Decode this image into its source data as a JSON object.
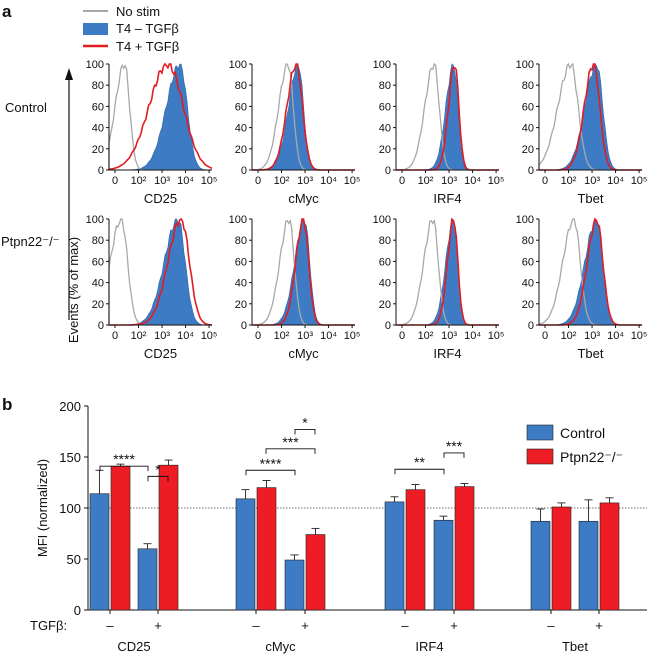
{
  "panel_a": {
    "letter": "a",
    "legend": [
      {
        "label": "No stim",
        "color": "#a8a8a8",
        "style": "line"
      },
      {
        "label": "T4 – TGFβ",
        "color": "#3d7cc4",
        "style": "fill"
      },
      {
        "label": "T4 + TGFβ",
        "color": "#e31b23",
        "style": "line"
      }
    ],
    "row_labels": [
      "Control",
      "Ptpn22⁻/⁻"
    ],
    "y_axis_label": "Events (% of max)",
    "y_ticks": [
      "100",
      "80",
      "60",
      "40",
      "20",
      "0"
    ],
    "x_ticks": [
      "0",
      "10²",
      "10³",
      "10⁴",
      "10⁵"
    ],
    "markers": [
      "CD25",
      "cMyc",
      "IRF4",
      "Tbet"
    ]
  },
  "panel_b": {
    "letter": "b",
    "chart_data": {
      "type": "bar",
      "ylabel": "MFI (normalized)",
      "ylim": [
        0,
        200
      ],
      "yticks": [
        0,
        50,
        100,
        150,
        200
      ],
      "reference_line": 100,
      "groups": [
        "CD25",
        "cMyc",
        "IRF4",
        "Tbet"
      ],
      "conditions": [
        "–",
        "+"
      ],
      "condition_label": "TGFβ:",
      "legend_position": "top-right",
      "series": [
        {
          "name": "Control",
          "color": "#3d7cc4",
          "values": [
            [
              114,
              60
            ],
            [
              109,
              49
            ],
            [
              106,
              88
            ],
            [
              87,
              87
            ]
          ],
          "errors": [
            [
              23,
              5
            ],
            [
              9,
              5
            ],
            [
              5,
              4
            ],
            [
              12,
              21
            ]
          ]
        },
        {
          "name": "Ptpn22⁻/⁻",
          "color": "#ee1c25",
          "values": [
            [
              141,
              142
            ],
            [
              120,
              74
            ],
            [
              118,
              121
            ],
            [
              101,
              105
            ]
          ],
          "errors": [
            [
              2,
              5
            ],
            [
              7,
              6
            ],
            [
              5,
              3
            ],
            [
              4,
              5
            ]
          ]
        }
      ],
      "significance": [
        {
          "group": "CD25",
          "label": "****"
        },
        {
          "group": "CD25",
          "label": "*"
        },
        {
          "group": "cMyc",
          "label": "****"
        },
        {
          "group": "cMyc",
          "label": "***"
        },
        {
          "group": "cMyc",
          "label": "*"
        },
        {
          "group": "IRF4",
          "label": "**"
        },
        {
          "group": "IRF4",
          "label": "***"
        }
      ]
    }
  }
}
